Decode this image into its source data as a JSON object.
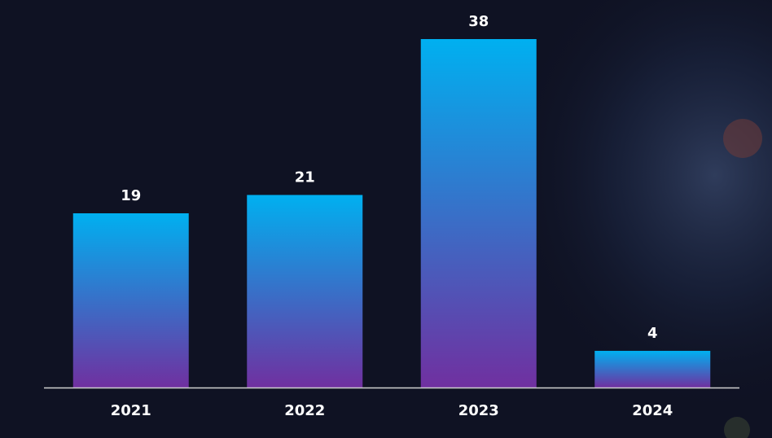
{
  "chart_data": {
    "type": "bar",
    "categories": [
      "2021",
      "2022",
      "2023",
      "2024"
    ],
    "values": [
      19,
      21,
      38,
      4
    ],
    "color": [
      "#00b0f0",
      "#7030a0"
    ],
    "data_labels": true
  }
}
